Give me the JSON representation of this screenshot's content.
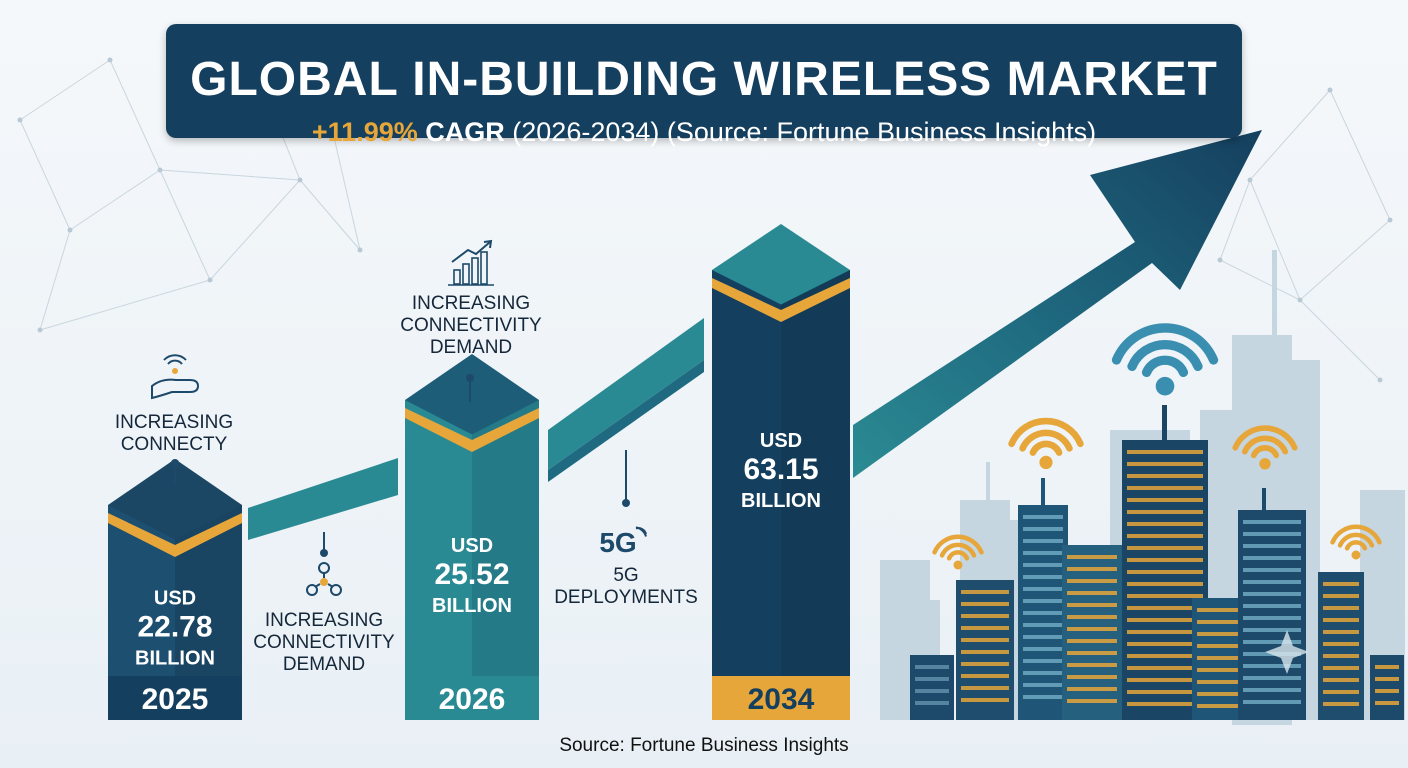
{
  "header": {
    "title": "GLOBAL IN-BUILDING WIRELESS MARKET",
    "cagr_value": "+11.99%",
    "cagr_label": "CAGR",
    "period": "(2026-2034)",
    "source_note": "(Source: Fortune Business Insights)"
  },
  "footer": {
    "source": "Source: Fortune Business Insights"
  },
  "colors": {
    "navy": "#153f5e",
    "teal": "#2a8a93",
    "gold": "#e6a63a",
    "arrow": "#1d4a6a"
  },
  "drivers": [
    {
      "icon": "hand-signal-icon",
      "lines": [
        "INCREASING",
        "CONNECTY"
      ]
    },
    {
      "icon": "network-nodes-icon",
      "lines": [
        "INCREASING",
        "CONNECTIVITY",
        "DEMAND"
      ]
    },
    {
      "icon": "growth-chart-icon",
      "lines": [
        "INCREASING",
        "CONNECTIVITY",
        "DEMAND"
      ]
    },
    {
      "icon": "5g-signal-icon",
      "badge": "5G",
      "lines": [
        "5G",
        "DEPLOYMENTS"
      ]
    }
  ],
  "chart_data": {
    "type": "bar",
    "categories": [
      "2025",
      "2026",
      "2034"
    ],
    "values": [
      22.78,
      25.52,
      63.15
    ],
    "value_labels": [
      [
        "USD",
        "22.78",
        "BILLION"
      ],
      [
        "USD",
        "25.52",
        "BILLION"
      ],
      [
        "USD",
        "63.15",
        "BILLION"
      ]
    ],
    "unit": "USD Billion",
    "title": "GLOBAL IN-BUILDING WIRELESS MARKET",
    "xlabel": "",
    "ylabel": "",
    "grid": false,
    "legend": "none"
  }
}
